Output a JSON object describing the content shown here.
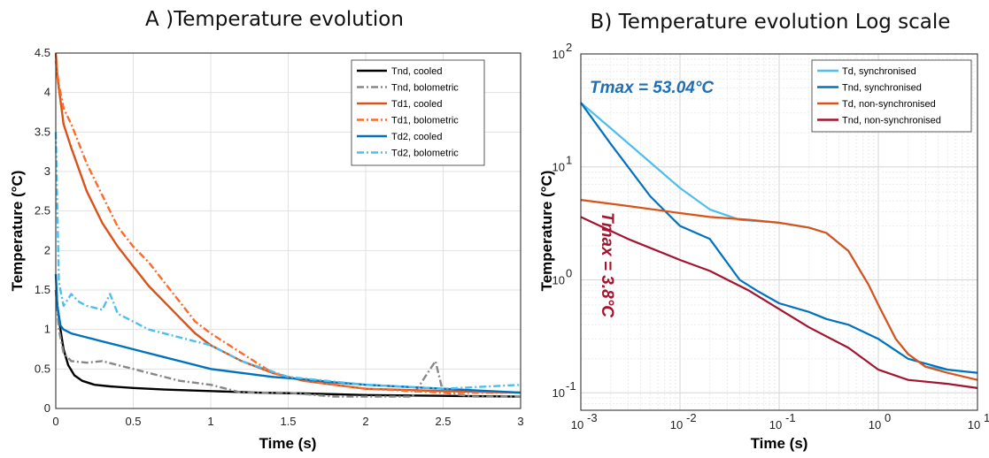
{
  "chart_data": [
    {
      "id": "A",
      "type": "line",
      "title": "A )Temperature evolution",
      "xlabel": "Time (s)",
      "ylabel": "Temperature (°C)",
      "xlim": [
        0,
        3
      ],
      "ylim": [
        0,
        4.5
      ],
      "xticks": [
        "0",
        "0.5",
        "1",
        "1.5",
        "2",
        "2.5",
        "3"
      ],
      "yticks": [
        "0",
        "0.5",
        "1",
        "1.5",
        "2",
        "2.5",
        "3",
        "3.5",
        "4",
        "4.5"
      ],
      "grid": true,
      "legend_position": "top-right",
      "series": [
        {
          "name": "Tnd, cooled",
          "color": "#000000",
          "style": "solid",
          "x": [
            0.0,
            0.01,
            0.03,
            0.05,
            0.08,
            0.12,
            0.17,
            0.25,
            0.35,
            0.5,
            0.7,
            1.0,
            1.3,
            1.6,
            2.0,
            2.5,
            3.0
          ],
          "y": [
            1.5,
            1.3,
            1.0,
            0.75,
            0.55,
            0.42,
            0.35,
            0.3,
            0.28,
            0.26,
            0.24,
            0.22,
            0.2,
            0.19,
            0.17,
            0.16,
            0.15
          ]
        },
        {
          "name": "Tnd, bolometric",
          "color": "#888888",
          "style": "dashdot",
          "x": [
            0.0,
            0.02,
            0.05,
            0.1,
            0.2,
            0.3,
            0.4,
            0.5,
            0.6,
            0.8,
            1.0,
            1.2,
            1.5,
            1.8,
            2.0,
            2.3,
            2.45,
            2.5,
            2.7,
            3.0
          ],
          "y": [
            1.5,
            1.0,
            0.7,
            0.6,
            0.58,
            0.6,
            0.55,
            0.5,
            0.45,
            0.35,
            0.3,
            0.2,
            0.2,
            0.15,
            0.15,
            0.15,
            0.6,
            0.2,
            0.15,
            0.15
          ]
        },
        {
          "name": "Td1, cooled",
          "color": "#D95319",
          "style": "solid",
          "x": [
            0.0,
            0.01,
            0.03,
            0.05,
            0.1,
            0.2,
            0.3,
            0.4,
            0.5,
            0.6,
            0.7,
            0.8,
            0.9,
            1.0,
            1.2,
            1.4,
            1.6,
            1.8,
            2.0,
            2.5,
            3.0
          ],
          "y": [
            4.5,
            4.2,
            3.9,
            3.6,
            3.3,
            2.75,
            2.35,
            2.05,
            1.8,
            1.55,
            1.35,
            1.15,
            0.95,
            0.8,
            0.6,
            0.45,
            0.35,
            0.3,
            0.25,
            0.22,
            0.2
          ]
        },
        {
          "name": "Td1, bolometric",
          "color": "#FF6A2A",
          "style": "dashdot",
          "x": [
            0.0,
            0.02,
            0.05,
            0.1,
            0.15,
            0.2,
            0.3,
            0.4,
            0.5,
            0.6,
            0.7,
            0.8,
            0.9,
            1.0,
            1.2,
            1.4,
            1.6,
            2.0,
            2.5,
            3.0
          ],
          "y": [
            4.4,
            4.1,
            3.8,
            3.6,
            3.35,
            3.1,
            2.7,
            2.3,
            2.05,
            1.85,
            1.6,
            1.35,
            1.1,
            0.95,
            0.7,
            0.45,
            0.35,
            0.25,
            0.2,
            0.2
          ]
        },
        {
          "name": "Td2, cooled",
          "color": "#0072BD",
          "style": "solid",
          "x": [
            0.0,
            0.01,
            0.03,
            0.05,
            0.1,
            0.2,
            0.3,
            0.4,
            0.5,
            0.6,
            0.7,
            0.8,
            1.0,
            1.2,
            1.4,
            1.6,
            1.8,
            2.0,
            2.5,
            3.0
          ],
          "y": [
            1.7,
            1.3,
            1.05,
            1.0,
            0.95,
            0.9,
            0.85,
            0.8,
            0.75,
            0.7,
            0.65,
            0.6,
            0.5,
            0.45,
            0.4,
            0.37,
            0.33,
            0.3,
            0.25,
            0.2
          ]
        },
        {
          "name": "Td2, bolometric",
          "color": "#4DBEEE",
          "style": "dashdot",
          "x": [
            0.0,
            0.02,
            0.05,
            0.1,
            0.15,
            0.2,
            0.3,
            0.35,
            0.4,
            0.5,
            0.6,
            0.7,
            0.8,
            0.9,
            1.0,
            1.2,
            1.5,
            2.0,
            2.5,
            3.0
          ],
          "y": [
            3.5,
            1.6,
            1.3,
            1.45,
            1.35,
            1.3,
            1.25,
            1.45,
            1.2,
            1.1,
            1.0,
            0.95,
            0.9,
            0.85,
            0.8,
            0.6,
            0.4,
            0.3,
            0.25,
            0.3
          ]
        }
      ]
    },
    {
      "id": "B",
      "type": "line",
      "title": "B) Temperature evolution Log scale",
      "xlabel": "Time (s)",
      "ylabel": "Temperature (°C)",
      "xscale": "log",
      "yscale": "log",
      "xlim": [
        0.001,
        10
      ],
      "ylim": [
        0.07,
        100
      ],
      "xticks": [
        {
          "base": "10",
          "exp": "-3"
        },
        {
          "base": "10",
          "exp": "-2"
        },
        {
          "base": "10",
          "exp": "-1"
        },
        {
          "base": "10",
          "exp": "0"
        },
        {
          "base": "10",
          "exp": "1"
        }
      ],
      "yticks": [
        {
          "base": "10",
          "exp": "-1"
        },
        {
          "base": "10",
          "exp": "0"
        },
        {
          "base": "10",
          "exp": "1"
        },
        {
          "base": "10",
          "exp": "2"
        }
      ],
      "grid": true,
      "legend_position": "top-right",
      "annotations": [
        {
          "text": "Tmax = 53.04°C",
          "color": "#1F6FB4"
        },
        {
          "text": "Tmax = 3.8°C",
          "color": "#A2142F"
        }
      ],
      "series": [
        {
          "name": "Td, synchronised",
          "color": "#4DBEEE",
          "x": [
            0.001,
            0.002,
            0.005,
            0.01,
            0.02,
            0.04,
            0.1,
            0.2,
            0.3,
            0.5,
            0.8,
            1.0,
            1.5,
            2.0,
            3.0,
            5.0,
            10.0
          ],
          "y": [
            37,
            22,
            11,
            6.5,
            4.2,
            3.4,
            3.2,
            2.9,
            2.6,
            1.8,
            0.9,
            0.6,
            0.3,
            0.22,
            0.17,
            0.16,
            0.15
          ]
        },
        {
          "name": "Tnd, synchronised",
          "color": "#0072BD",
          "x": [
            0.001,
            0.002,
            0.005,
            0.01,
            0.02,
            0.04,
            0.06,
            0.1,
            0.2,
            0.3,
            0.5,
            1.0,
            2.0,
            5.0,
            10.0
          ],
          "y": [
            37,
            16,
            5.5,
            3.0,
            2.3,
            1.0,
            0.8,
            0.62,
            0.52,
            0.45,
            0.4,
            0.3,
            0.2,
            0.16,
            0.15
          ]
        },
        {
          "name": "Td, non-synchronised",
          "color": "#D95319",
          "x": [
            0.001,
            0.003,
            0.01,
            0.02,
            0.05,
            0.1,
            0.2,
            0.3,
            0.5,
            0.8,
            1.0,
            1.5,
            2.0,
            3.0,
            5.0,
            10.0
          ],
          "y": [
            5.1,
            4.5,
            3.9,
            3.6,
            3.4,
            3.2,
            2.9,
            2.6,
            1.8,
            0.9,
            0.6,
            0.3,
            0.22,
            0.17,
            0.15,
            0.13
          ]
        },
        {
          "name": "Tnd, non-synchronised",
          "color": "#A2142F",
          "x": [
            0.001,
            0.003,
            0.01,
            0.02,
            0.05,
            0.1,
            0.2,
            0.5,
            1.0,
            2.0,
            5.0,
            10.0
          ],
          "y": [
            3.6,
            2.3,
            1.5,
            1.2,
            0.8,
            0.55,
            0.38,
            0.25,
            0.16,
            0.13,
            0.12,
            0.11
          ]
        }
      ]
    }
  ]
}
